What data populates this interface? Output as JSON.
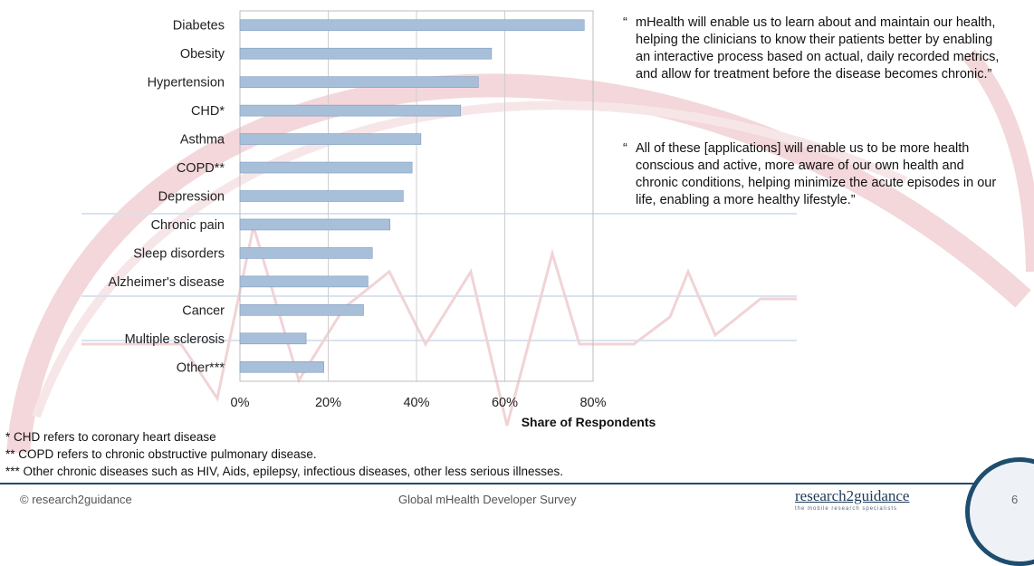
{
  "chart_data": {
    "type": "bar",
    "orientation": "horizontal",
    "categories": [
      "Diabetes",
      "Obesity",
      "Hypertension",
      "CHD*",
      "Asthma",
      "COPD**",
      "Depression",
      "Chronic pain",
      "Sleep disorders",
      "Alzheimer's disease",
      "Cancer",
      "Multiple sclerosis",
      "Other***"
    ],
    "values": [
      78,
      57,
      54,
      50,
      41,
      39,
      37,
      34,
      30,
      29,
      28,
      15,
      19
    ],
    "xlim": [
      0,
      80
    ],
    "xticks": [
      "0%",
      "20%",
      "40%",
      "60%",
      "80%"
    ],
    "xlabel": "Share of Respondents",
    "gridlines": [
      0,
      20,
      40,
      60,
      80
    ],
    "bar_color": "#a8bfd9",
    "bar_edge": "#7f9cc0"
  },
  "quotes": [
    {
      "mark": "“",
      "text": "mHealth will enable us to learn about and maintain our health, helping the clinicians to know their patients better by enabling an interactive process based on actual, daily recorded metrics, and allow for treatment before the disease becomes chronic.”"
    },
    {
      "mark": "“",
      "text": "All of these [applications] will enable us to be more health conscious and active, more aware of our own health and chronic conditions, helping minimize the acute episodes in our life, enabling a more healthy lifestyle.”"
    }
  ],
  "footnotes": [
    "* CHD refers to coronary heart disease",
    "** COPD refers to chronic obstructive pulmonary disease.",
    "*** Other chronic diseases such as  HIV, Aids, epilepsy, infectious diseases, other less serious illnesses."
  ],
  "footer": {
    "copyright": "© research2guidance",
    "survey": "Global mHealth Developer Survey",
    "logo": "research2guidance",
    "tagline": "the mobile research specialists",
    "page": "6"
  },
  "colors": {
    "accent": "#1e4d6e",
    "watermark": "#f2d5d8"
  }
}
